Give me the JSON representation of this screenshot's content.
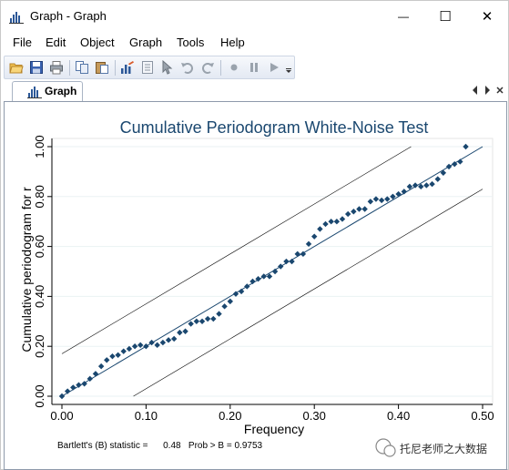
{
  "window": {
    "title": "Graph - Graph",
    "minimize_glyph": "—",
    "maximize_glyph": "☐",
    "close_glyph": "✕"
  },
  "menu": {
    "items": [
      "File",
      "Edit",
      "Object",
      "Graph",
      "Tools",
      "Help"
    ]
  },
  "toolbar": {
    "icons": [
      "open-folder-icon",
      "save-icon",
      "print-icon",
      "copy-icon",
      "paste-icon",
      "graph-editor-icon",
      "document-icon",
      "pointer-icon",
      "undo-icon",
      "redo-icon",
      "record-icon",
      "pause-icon",
      "play-icon",
      "toolbar-dropdown-icon"
    ]
  },
  "tabs": {
    "active_label": "Graph"
  },
  "watermark": {
    "text": "托尼老师之大数据"
  },
  "colors": {
    "marker": "#1a476f",
    "title": "#1a476f",
    "fit_line": "#1a476f",
    "band_line": "#000000",
    "grid": "#eaf2f3"
  },
  "chart_data": {
    "type": "scatter",
    "title": "Cumulative Periodogram White-Noise Test",
    "xlabel": "Frequency",
    "ylabel": "Cumulative periodogram for r",
    "xlim": [
      0,
      0.5
    ],
    "ylim": [
      0,
      1
    ],
    "x_ticks": [
      "0.00",
      "0.10",
      "0.20",
      "0.30",
      "0.40",
      "0.50"
    ],
    "y_ticks": [
      "0.00",
      "0.20",
      "0.40",
      "0.60",
      "0.80",
      "1.00"
    ],
    "grid": "horizontal",
    "footnote": "Bartlett's (B) statistic =      0.48   Prob > B = 0.9753",
    "series": [
      {
        "kind": "points",
        "points": [
          [
            0.0,
            0.0
          ],
          [
            0.0067,
            0.02
          ],
          [
            0.0133,
            0.035
          ],
          [
            0.02,
            0.045
          ],
          [
            0.0267,
            0.05
          ],
          [
            0.0333,
            0.07
          ],
          [
            0.04,
            0.09
          ],
          [
            0.0467,
            0.12
          ],
          [
            0.0533,
            0.145
          ],
          [
            0.06,
            0.16
          ],
          [
            0.0667,
            0.165
          ],
          [
            0.0733,
            0.18
          ],
          [
            0.08,
            0.19
          ],
          [
            0.0867,
            0.2
          ],
          [
            0.0933,
            0.205
          ],
          [
            0.1,
            0.2
          ],
          [
            0.1067,
            0.215
          ],
          [
            0.1133,
            0.205
          ],
          [
            0.12,
            0.215
          ],
          [
            0.1267,
            0.225
          ],
          [
            0.1333,
            0.23
          ],
          [
            0.14,
            0.255
          ],
          [
            0.1467,
            0.26
          ],
          [
            0.1533,
            0.29
          ],
          [
            0.16,
            0.3
          ],
          [
            0.1667,
            0.3
          ],
          [
            0.1733,
            0.31
          ],
          [
            0.18,
            0.31
          ],
          [
            0.1867,
            0.33
          ],
          [
            0.1933,
            0.36
          ],
          [
            0.2,
            0.38
          ],
          [
            0.2067,
            0.41
          ],
          [
            0.2133,
            0.42
          ],
          [
            0.22,
            0.44
          ],
          [
            0.2267,
            0.46
          ],
          [
            0.2333,
            0.47
          ],
          [
            0.24,
            0.48
          ],
          [
            0.2467,
            0.48
          ],
          [
            0.2533,
            0.5
          ],
          [
            0.26,
            0.52
          ],
          [
            0.2667,
            0.54
          ],
          [
            0.2733,
            0.54
          ],
          [
            0.28,
            0.57
          ],
          [
            0.2867,
            0.57
          ],
          [
            0.2933,
            0.61
          ],
          [
            0.3,
            0.64
          ],
          [
            0.3067,
            0.67
          ],
          [
            0.3133,
            0.69
          ],
          [
            0.32,
            0.7
          ],
          [
            0.3267,
            0.7
          ],
          [
            0.3333,
            0.71
          ],
          [
            0.34,
            0.73
          ],
          [
            0.3467,
            0.74
          ],
          [
            0.3533,
            0.75
          ],
          [
            0.36,
            0.75
          ],
          [
            0.3667,
            0.78
          ],
          [
            0.3733,
            0.79
          ],
          [
            0.38,
            0.785
          ],
          [
            0.3867,
            0.79
          ],
          [
            0.3933,
            0.8
          ],
          [
            0.4,
            0.81
          ],
          [
            0.4067,
            0.82
          ],
          [
            0.4133,
            0.84
          ],
          [
            0.42,
            0.845
          ],
          [
            0.4267,
            0.84
          ],
          [
            0.4333,
            0.845
          ],
          [
            0.44,
            0.85
          ],
          [
            0.4467,
            0.87
          ],
          [
            0.4533,
            0.895
          ],
          [
            0.46,
            0.92
          ],
          [
            0.4667,
            0.93
          ],
          [
            0.4733,
            0.94
          ],
          [
            0.48,
            1.0
          ]
        ]
      },
      {
        "kind": "line",
        "role": "reference",
        "points": [
          [
            0.0,
            0.0
          ],
          [
            0.5,
            1.0
          ]
        ]
      },
      {
        "kind": "line",
        "role": "upper-band",
        "points": [
          [
            0.0,
            0.17
          ],
          [
            0.415,
            1.0
          ]
        ]
      },
      {
        "kind": "line",
        "role": "lower-band",
        "points": [
          [
            0.085,
            0.0
          ],
          [
            0.5,
            0.83
          ]
        ]
      }
    ]
  }
}
